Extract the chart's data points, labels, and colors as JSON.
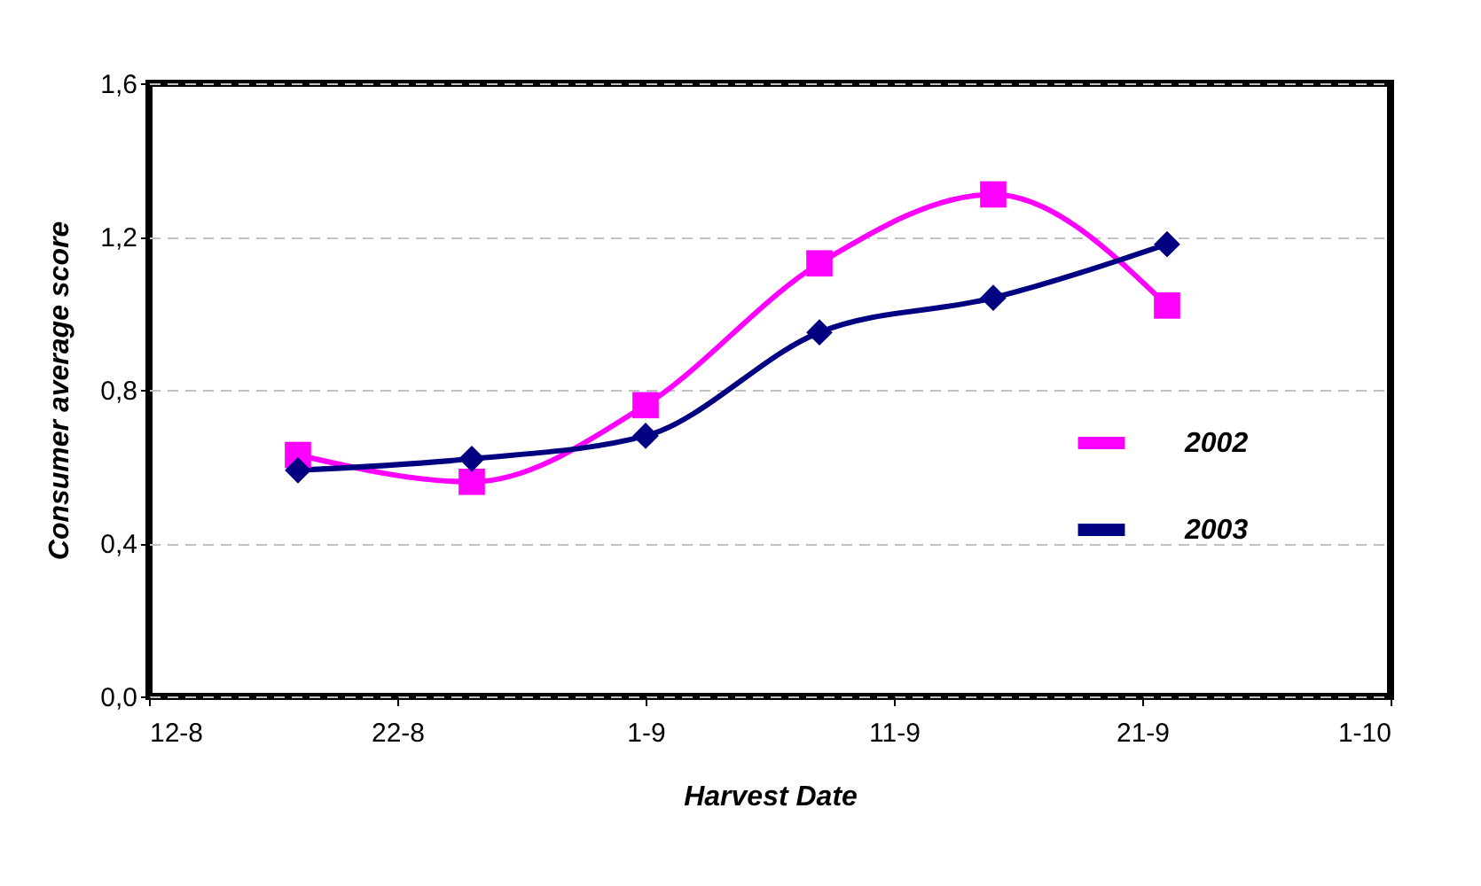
{
  "chart_data": {
    "type": "line",
    "xlabel": "Harvest Date",
    "ylabel": "Consumer average score",
    "x": [
      "--08-18",
      "--08-25",
      "--09-01",
      "--09-08",
      "--09-15",
      "--09-22"
    ],
    "series": [
      {
        "name": "2002",
        "color": "#ff00ff",
        "marker": "square",
        "values": [
          0.63,
          0.56,
          0.76,
          1.13,
          1.31,
          1.02
        ]
      },
      {
        "name": "2003",
        "color": "#000080",
        "marker": "diamond",
        "values": [
          0.59,
          0.62,
          0.68,
          0.95,
          1.04,
          1.18
        ]
      }
    ],
    "xlim": [
      "--08-12",
      "--10-01"
    ],
    "xticks": [
      {
        "value": "--08-12",
        "label": "12-8"
      },
      {
        "value": "--08-22",
        "label": "22-8"
      },
      {
        "value": "--09-01",
        "label": "1-9"
      },
      {
        "value": "--09-11",
        "label": "11-9"
      },
      {
        "value": "--09-21",
        "label": "21-9"
      },
      {
        "value": "--10-01",
        "label": "1-10"
      }
    ],
    "ylim": [
      0,
      1.6
    ],
    "yticks": [
      {
        "value": 0,
        "label": "0,0"
      },
      {
        "value": 0.4,
        "label": "0,4"
      },
      {
        "value": 0.8,
        "label": "0,8"
      },
      {
        "value": 1.2,
        "label": "1,2"
      },
      {
        "value": 1.6,
        "label": "1,6"
      }
    ],
    "grid": "y",
    "legend": "bottom right",
    "line_style": "solid"
  }
}
